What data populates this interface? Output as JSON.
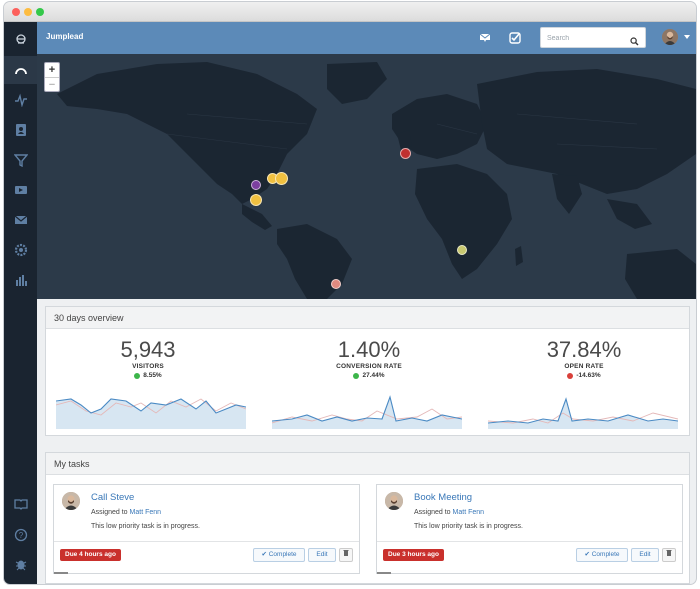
{
  "window": {
    "traffic_lights": [
      "#fc605c",
      "#fdbc40",
      "#34c84a"
    ]
  },
  "sidebar": {
    "items": [
      {
        "icon": "logo-icon"
      },
      {
        "icon": "dashboard-gauge-icon",
        "active": true
      },
      {
        "icon": "activity-pulse-icon"
      },
      {
        "icon": "contacts-icon"
      },
      {
        "icon": "funnel-icon"
      },
      {
        "icon": "campaign-icon"
      },
      {
        "icon": "mail-icon"
      },
      {
        "icon": "settings-cog-icon"
      },
      {
        "icon": "reports-bar-chart-icon"
      },
      {
        "icon": "book-icon"
      },
      {
        "icon": "help-icon"
      },
      {
        "icon": "bug-icon"
      }
    ]
  },
  "topbar": {
    "brand": "Jumplead",
    "search_placeholder": "Search",
    "icons": [
      "inbox-flag-icon",
      "tasks-check-icon",
      "search-icon",
      "user-avatar",
      "chevron-down-icon"
    ]
  },
  "map": {
    "zoom_in": "+",
    "zoom_out": "−",
    "marker_colors": [
      "#f0c040",
      "#7b3fa0",
      "#c03030",
      "#c8c870",
      "#e08a80"
    ]
  },
  "overview": {
    "title": "30 days overview",
    "stats": [
      {
        "value": "5,943",
        "label": "VISITORS",
        "change": "8.55%",
        "trend": "up",
        "trend_color": "#3cb54a"
      },
      {
        "value": "1.40%",
        "label": "CONVERSION RATE",
        "change": "27.44%",
        "trend": "up",
        "trend_color": "#3cb54a"
      },
      {
        "value": "37.84%",
        "label": "OPEN RATE",
        "change": "-14.63%",
        "trend": "down",
        "trend_color": "#d9403a"
      }
    ]
  },
  "tasks": {
    "title": "My tasks",
    "items": [
      {
        "title": "Call Steve",
        "assigned_prefix": "Assigned to",
        "assignee": "Matt Fenn",
        "description": "This low priority task is in progress.",
        "due": "Due 4 hours ago",
        "complete_label": "Complete",
        "edit_label": "Edit"
      },
      {
        "title": "Book Meeting",
        "assigned_prefix": "Assigned to",
        "assignee": "Matt Fenn",
        "description": "This low priority task is in progress.",
        "due": "Due 3 hours ago",
        "complete_label": "Complete",
        "edit_label": "Edit"
      }
    ]
  }
}
